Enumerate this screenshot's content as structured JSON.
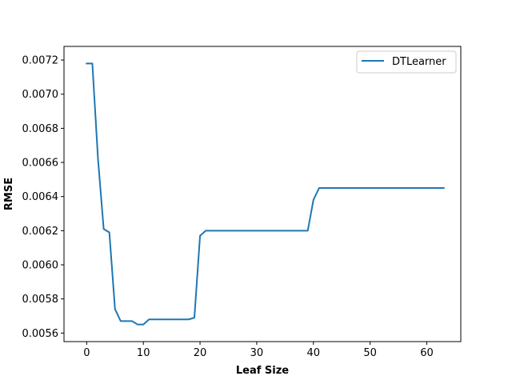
{
  "chart_data": {
    "type": "line",
    "xlabel": "Leaf Size",
    "ylabel": "RMSE",
    "xlim": [
      -4,
      66
    ],
    "ylim": [
      0.00555,
      0.00728
    ],
    "x_ticks": [
      0,
      10,
      20,
      30,
      40,
      50,
      60
    ],
    "y_ticks": [
      0.0056,
      0.0058,
      0.006,
      0.0062,
      0.0064,
      0.0066,
      0.0068,
      0.007,
      0.0072
    ],
    "y_tick_labels": [
      "0.0056",
      "0.0058",
      "0.0060",
      "0.0062",
      "0.0064",
      "0.0066",
      "0.0068",
      "0.0070",
      "0.0072"
    ],
    "legend_position": "top-right",
    "grid": false,
    "series": [
      {
        "name": "DTLearner",
        "color": "#1f77b4",
        "x": [
          0,
          1,
          2,
          3,
          4,
          5,
          6,
          7,
          8,
          9,
          10,
          11,
          12,
          13,
          14,
          15,
          16,
          17,
          18,
          19,
          20,
          21,
          22,
          23,
          24,
          25,
          26,
          27,
          28,
          29,
          30,
          31,
          32,
          33,
          34,
          35,
          36,
          37,
          38,
          39,
          40,
          41,
          42,
          43,
          44,
          45,
          46,
          47,
          48,
          49,
          50,
          51,
          52,
          53,
          54,
          55,
          56,
          57,
          58,
          59,
          60,
          61,
          62,
          63
        ],
        "y": [
          0.00718,
          0.00718,
          0.00662,
          0.00621,
          0.00619,
          0.00574,
          0.00567,
          0.00567,
          0.00567,
          0.00565,
          0.00565,
          0.00568,
          0.00568,
          0.00568,
          0.00568,
          0.00568,
          0.00568,
          0.00568,
          0.00568,
          0.00569,
          0.00617,
          0.0062,
          0.0062,
          0.0062,
          0.0062,
          0.0062,
          0.0062,
          0.0062,
          0.0062,
          0.0062,
          0.0062,
          0.0062,
          0.0062,
          0.0062,
          0.0062,
          0.0062,
          0.0062,
          0.0062,
          0.0062,
          0.0062,
          0.00638,
          0.00645,
          0.00645,
          0.00645,
          0.00645,
          0.00645,
          0.00645,
          0.00645,
          0.00645,
          0.00645,
          0.00645,
          0.00645,
          0.00645,
          0.00645,
          0.00645,
          0.00645,
          0.00645,
          0.00645,
          0.00645,
          0.00645,
          0.00645,
          0.00645,
          0.00645,
          0.00645
        ]
      }
    ]
  }
}
